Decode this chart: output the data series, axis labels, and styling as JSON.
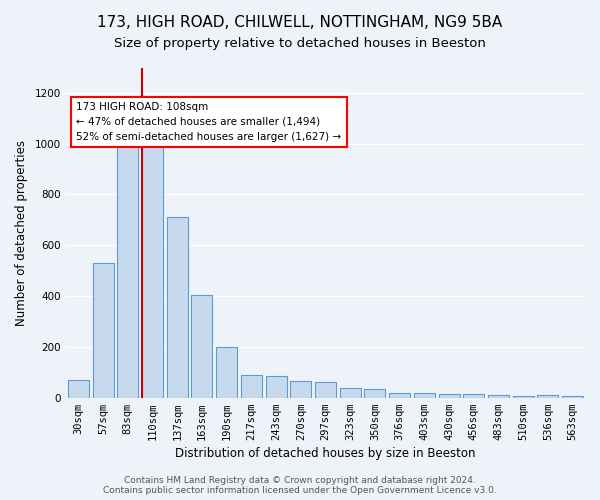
{
  "title1": "173, HIGH ROAD, CHILWELL, NOTTINGHAM, NG9 5BA",
  "title2": "Size of property relative to detached houses in Beeston",
  "xlabel": "Distribution of detached houses by size in Beeston",
  "ylabel": "Number of detached properties",
  "bar_values": [
    70,
    530,
    1000,
    1000,
    710,
    405,
    200,
    90,
    85,
    65,
    60,
    40,
    35,
    20,
    20,
    15,
    15,
    10,
    5,
    10,
    8
  ],
  "categories": [
    "30sqm",
    "57sqm",
    "83sqm",
    "110sqm",
    "137sqm",
    "163sqm",
    "190sqm",
    "217sqm",
    "243sqm",
    "270sqm",
    "297sqm",
    "323sqm",
    "350sqm",
    "376sqm",
    "403sqm",
    "430sqm",
    "456sqm",
    "483sqm",
    "510sqm",
    "536sqm",
    "563sqm"
  ],
  "bar_color": "#c7d9ed",
  "bar_edge_color": "#5b9bd5",
  "red_line_color": "#cc0000",
  "annotation_text": "173 HIGH ROAD: 108sqm\n← 47% of detached houses are smaller (1,494)\n52% of semi-detached houses are larger (1,627) →",
  "annotation_box_color": "white",
  "annotation_box_edge_color": "red",
  "ylim": [
    0,
    1300
  ],
  "yticks": [
    0,
    200,
    400,
    600,
    800,
    1000,
    1200
  ],
  "background_color": "#eef2f9",
  "grid_color": "white",
  "footer": "Contains HM Land Registry data © Crown copyright and database right 2024.\nContains public sector information licensed under the Open Government Licence v3.0.",
  "title1_fontsize": 11,
  "title2_fontsize": 9.5,
  "xlabel_fontsize": 8.5,
  "ylabel_fontsize": 8.5,
  "tick_fontsize": 7.5,
  "footer_fontsize": 6.5
}
